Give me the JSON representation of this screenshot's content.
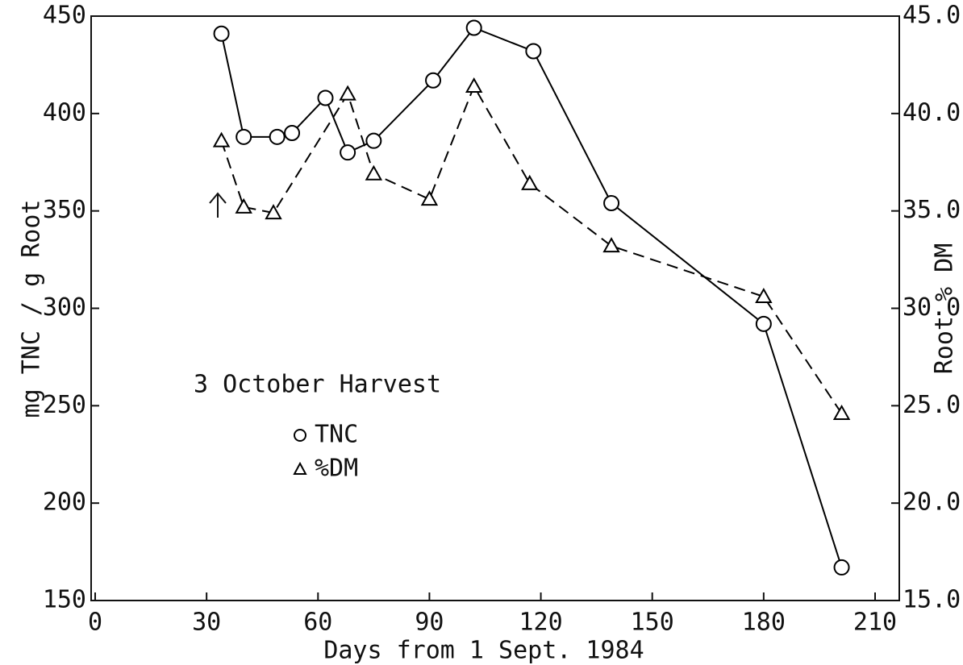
{
  "chart_data": {
    "type": "line",
    "annotation": "3 October Harvest",
    "xlabel": "Days from 1 Sept. 1984",
    "ylabel": "mg TNC / g Root",
    "y2label": "Root % DM",
    "xlim": [
      0,
      210
    ],
    "xticks": [
      0,
      30,
      60,
      90,
      120,
      150,
      180,
      210
    ],
    "ylim": [
      150,
      450
    ],
    "yticks": [
      150,
      200,
      250,
      300,
      350,
      400,
      450
    ],
    "y2lim": [
      15,
      45
    ],
    "y2ticks": [
      {
        "value": 15,
        "label": "15.0"
      },
      {
        "value": 20,
        "label": "20.0"
      },
      {
        "value": 25,
        "label": "25.0"
      },
      {
        "value": 30,
        "label": "30.0"
      },
      {
        "value": 35,
        "label": "35.0"
      },
      {
        "value": 40,
        "label": "40.0"
      },
      {
        "value": 45,
        "label": "45.0"
      }
    ],
    "series": [
      {
        "name": "TNC",
        "color": "#000000",
        "marker": "circle",
        "line_style": "solid",
        "x": [
          34,
          40,
          49,
          53,
          62,
          68,
          75,
          91,
          102,
          118,
          139,
          180,
          201
        ],
        "values": [
          441,
          388,
          388,
          390,
          408,
          380,
          386,
          417,
          444,
          432,
          354,
          292,
          167
        ]
      },
      {
        "name": "%DM",
        "color": "#000000",
        "marker": "triangle",
        "line_style": "dashed",
        "axis": "y2",
        "x": [
          34,
          40,
          48,
          68,
          75,
          90,
          102,
          117,
          139,
          180,
          201
        ],
        "values": [
          38.6,
          35.2,
          34.9,
          41.0,
          36.9,
          35.6,
          41.4,
          36.4,
          33.2,
          30.6,
          24.6
        ]
      }
    ]
  }
}
